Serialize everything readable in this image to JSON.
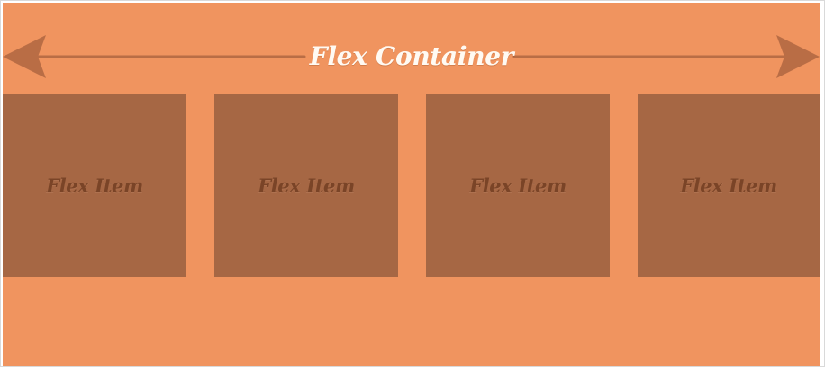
{
  "diagram": {
    "container_label": "Flex Container",
    "items": [
      {
        "label": "Flex Item"
      },
      {
        "label": "Flex Item"
      },
      {
        "label": "Flex Item"
      },
      {
        "label": "Flex Item"
      }
    ]
  },
  "colors": {
    "container": "#f0945f",
    "item": "#a66744",
    "item_text": "#7a4427",
    "arrow": "#b96d45",
    "title_text": "#fffaf3"
  },
  "icons": {
    "left_arrow": "left-arrowhead-icon",
    "right_arrow": "right-arrowhead-icon"
  }
}
